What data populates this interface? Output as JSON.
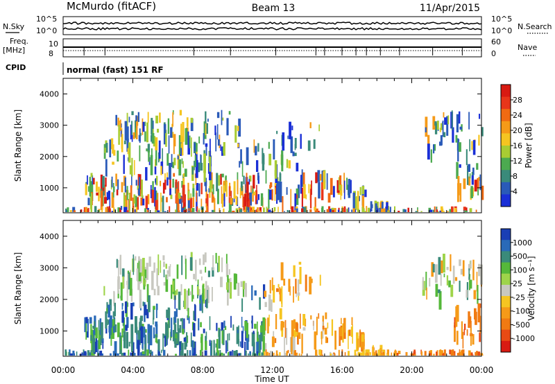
{
  "header": {
    "station": "McMurdo (fitACF)",
    "beam": "Beam 13",
    "date": "11/Apr/2015"
  },
  "side_labels": {
    "nsky": "N.Sky",
    "nsky_hi": "10^5",
    "nsky_lo": "10^0",
    "nsearch": "N.Search",
    "nsearch_hi": "10^5",
    "nsearch_lo": "10^0",
    "freq": "Freq.",
    "freq_unit": "[MHz]",
    "freq_hi": "10",
    "freq_lo": "8",
    "nave": "Nave",
    "nave_hi": "60",
    "nave_lo": "0",
    "cpid": "CPID",
    "cpid_value": "normal (fast) 151 RF"
  },
  "chart_data": [
    {
      "type": "heatmap",
      "title": "Power",
      "ylabel": "Slant Range [km]",
      "xlabel": "Time UT",
      "x_ticks": [
        "00:00",
        "04:00",
        "08:00",
        "12:00",
        "16:00",
        "20:00",
        "00:00"
      ],
      "y_ticks": [
        "1000",
        "2000",
        "3000",
        "4000"
      ],
      "ylim": [
        200,
        4500
      ],
      "xlim_hours": [
        0,
        24
      ],
      "colorbar": {
        "label": "Power [dB]",
        "ticks": [
          "4",
          "8",
          "12",
          "16",
          "20",
          "24",
          "28"
        ],
        "colors": [
          "#1a2fd6",
          "#2a5ab8",
          "#3a8a7a",
          "#4caa50",
          "#a8cc33",
          "#f5c521",
          "#f59a18",
          "#f06a12",
          "#e8361a",
          "#d81a12"
        ]
      }
    },
    {
      "type": "heatmap",
      "title": "Velocity",
      "ylabel": "Slant Range [km]",
      "xlabel": "Time UT",
      "x_ticks": [
        "00:00",
        "04:00",
        "08:00",
        "12:00",
        "16:00",
        "20:00",
        "00:00"
      ],
      "y_ticks": [
        "1000",
        "2000",
        "3000",
        "4000"
      ],
      "ylim": [
        200,
        4500
      ],
      "xlim_hours": [
        0,
        24
      ],
      "colorbar": {
        "label": "Velocity [m s⁻¹]",
        "ticks": [
          "1000",
          "500",
          "100",
          "25",
          "-25",
          "-100",
          "-500",
          "-1000"
        ],
        "colors": [
          "#1a3fb5",
          "#2a6ab8",
          "#3a8a7a",
          "#55b83a",
          "#9ed44a",
          "#c8c8c0",
          "#f5c521",
          "#f59a18",
          "#f07a12",
          "#e84a15",
          "#d81a12"
        ]
      }
    }
  ],
  "xaxis_label": "Time UT"
}
